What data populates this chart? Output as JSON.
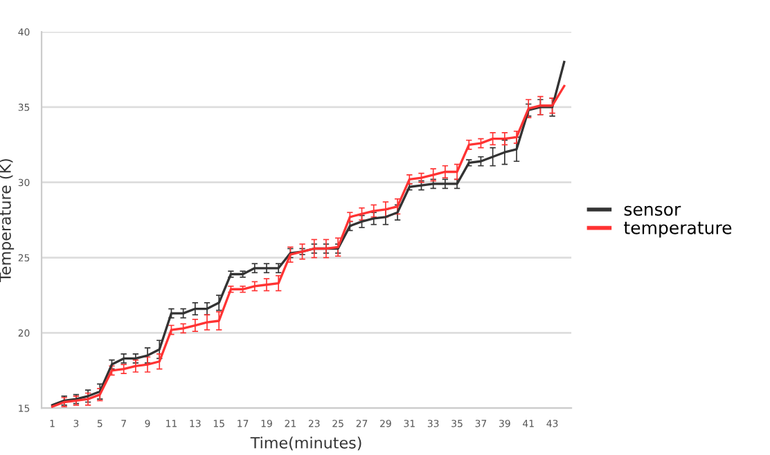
{
  "chart_data": {
    "type": "line",
    "xlabel": "Time(minutes)",
    "ylabel": "Temperature (K)",
    "x": [
      1,
      2,
      3,
      4,
      5,
      6,
      7,
      8,
      9,
      10,
      11,
      12,
      13,
      14,
      15,
      16,
      17,
      18,
      19,
      20,
      21,
      22,
      23,
      24,
      25,
      26,
      27,
      28,
      29,
      30,
      31,
      32,
      33,
      34,
      35,
      36,
      37,
      38,
      39,
      40,
      41,
      42,
      43,
      44
    ],
    "xlim": [
      0.1,
      44.6
    ],
    "xticks": [
      1,
      3,
      5,
      7,
      9,
      11,
      13,
      15,
      17,
      19,
      21,
      23,
      25,
      27,
      29,
      31,
      33,
      35,
      37,
      39,
      41,
      43
    ],
    "series": [
      {
        "name": "sensor",
        "color": "#333333",
        "values": [
          15.2,
          15.5,
          15.6,
          15.8,
          16.1,
          17.9,
          18.3,
          18.3,
          18.5,
          18.9,
          21.3,
          21.3,
          21.6,
          21.6,
          22.0,
          23.9,
          23.9,
          24.3,
          24.3,
          24.3,
          25.3,
          25.4,
          25.6,
          25.6,
          25.6,
          27.1,
          27.4,
          27.6,
          27.7,
          28.0,
          29.7,
          29.8,
          29.9,
          29.9,
          29.9,
          31.3,
          31.4,
          31.7,
          32.0,
          32.2,
          34.8,
          35.0,
          35.0,
          38.0
        ],
        "errors": [
          null,
          0.3,
          0.3,
          0.4,
          0.5,
          0.3,
          0.3,
          0.3,
          0.5,
          0.6,
          0.3,
          0.3,
          0.4,
          0.4,
          0.5,
          0.2,
          0.2,
          0.3,
          0.3,
          0.3,
          0.3,
          0.2,
          0.3,
          0.3,
          0.3,
          0.3,
          0.4,
          0.4,
          0.5,
          0.5,
          0.2,
          0.3,
          0.3,
          0.3,
          0.3,
          0.2,
          0.3,
          0.6,
          0.8,
          0.8,
          0.4,
          0.5,
          0.6,
          null
        ]
      },
      {
        "name": "temperature",
        "color": "#ff3333",
        "values": [
          15.1,
          15.4,
          15.5,
          15.6,
          15.9,
          17.5,
          17.6,
          17.8,
          17.9,
          18.1,
          20.2,
          20.3,
          20.5,
          20.7,
          20.8,
          22.9,
          22.9,
          23.1,
          23.2,
          23.3,
          25.2,
          25.4,
          25.6,
          25.6,
          25.7,
          27.7,
          27.9,
          28.1,
          28.2,
          28.4,
          30.2,
          30.3,
          30.5,
          30.7,
          30.7,
          32.5,
          32.6,
          32.9,
          32.9,
          33.0,
          34.9,
          35.1,
          35.1,
          36.4
        ],
        "errors": [
          null,
          0.3,
          0.3,
          0.4,
          0.4,
          0.3,
          0.3,
          0.4,
          0.5,
          0.5,
          0.3,
          0.3,
          0.4,
          0.5,
          0.6,
          0.2,
          0.2,
          0.3,
          0.4,
          0.5,
          0.5,
          0.5,
          0.6,
          0.6,
          0.6,
          0.3,
          0.4,
          0.4,
          0.5,
          0.5,
          0.3,
          0.3,
          0.4,
          0.4,
          0.5,
          0.3,
          0.3,
          0.4,
          0.4,
          0.4,
          0.6,
          0.6,
          0.5,
          null
        ]
      }
    ],
    "ylim": [
      15,
      40
    ],
    "yticks": [
      15,
      20,
      25,
      30,
      35,
      40
    ],
    "grid": "y",
    "legend": "right",
    "marker": "none",
    "line_style": "solid"
  }
}
